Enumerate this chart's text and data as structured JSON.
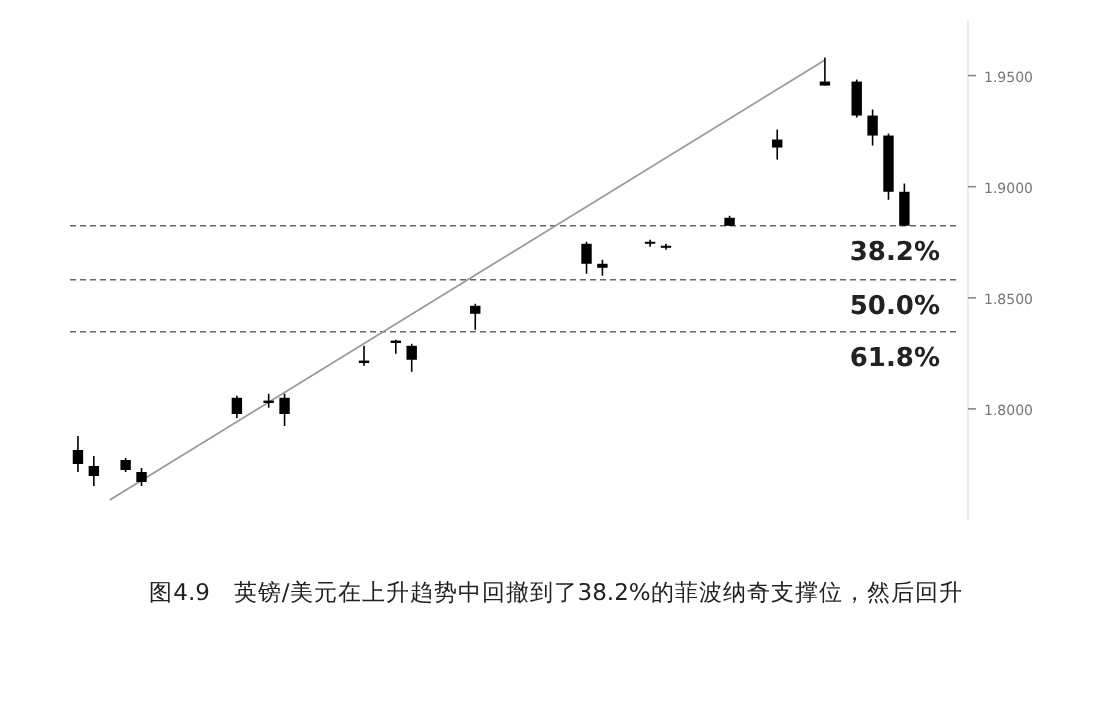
{
  "chart_data": {
    "type": "candlestick",
    "title": "图4.9　英镑/美元在上升趋势中回撤到了38.2%的菲波纳奇支撑位，然后回升",
    "categories": [
      null,
      null,
      null,
      null,
      null,
      null,
      null,
      null,
      null,
      null,
      null,
      null,
      null,
      null,
      null,
      null,
      null,
      null,
      null,
      null,
      null,
      null,
      null,
      null,
      null,
      null,
      null,
      null,
      null,
      null,
      null,
      null,
      null,
      null,
      null,
      null,
      null,
      null,
      null,
      null,
      null,
      null,
      null,
      null,
      null,
      null,
      null,
      null,
      null,
      null,
      null,
      null,
      null,
      null,
      null,
      null
    ],
    "ohlc": [
      [
        1.7815,
        1.7878,
        1.7716,
        1.7752
      ],
      [
        1.7743,
        1.7788,
        1.7653,
        1.7698
      ],
      null,
      [
        1.777,
        1.7779,
        1.7716,
        1.7725
      ],
      [
        1.7716,
        1.7734,
        1.7653,
        1.7671
      ],
      null,
      null,
      null,
      null,
      null,
      [
        1.805,
        1.8059,
        1.7959,
        1.7977
      ],
      null,
      [
        1.8032,
        1.8068,
        1.8005,
        1.8028
      ],
      [
        1.805,
        1.8068,
        1.7923,
        1.7977
      ],
      null,
      null,
      null,
      null,
      [
        1.8212,
        1.8284,
        1.8194,
        1.8208
      ],
      null,
      [
        1.8302,
        1.8311,
        1.8248,
        1.8298
      ],
      [
        1.8284,
        1.8293,
        1.8167,
        1.8221
      ],
      null,
      null,
      null,
      [
        1.8464,
        1.8473,
        1.8356,
        1.8428
      ],
      null,
      null,
      null,
      null,
      null,
      null,
      [
        1.8743,
        1.8752,
        1.8608,
        1.8653
      ],
      [
        1.8653,
        1.8671,
        1.8599,
        1.8635
      ],
      null,
      null,
      [
        1.8752,
        1.8761,
        1.873,
        1.8743
      ],
      [
        1.8734,
        1.8743,
        1.8716,
        1.8725
      ],
      null,
      null,
      null,
      [
        1.886,
        1.8869,
        1.8824,
        1.8824
      ],
      null,
      null,
      [
        1.9212,
        1.9257,
        1.9122,
        1.9176
      ],
      null,
      null,
      [
        1.9473,
        1.9581,
        1.9455,
        1.9455
      ],
      null,
      [
        1.9473,
        1.9482,
        1.9311,
        1.932
      ],
      [
        1.932,
        1.9347,
        1.9185,
        1.923
      ],
      [
        1.923,
        1.9239,
        1.8941,
        1.8977
      ],
      [
        1.8977,
        1.9014,
        1.8824,
        1.8824
      ],
      null,
      null,
      null
    ],
    "color": "#000000",
    "series": [
      {
        "type": "line",
        "color": "#999999",
        "values": [
          null,
          null,
          1.759,
          null,
          null,
          null,
          null,
          null,
          null,
          null,
          null,
          null,
          null,
          null,
          null,
          null,
          null,
          null,
          null,
          null,
          null,
          null,
          null,
          null,
          null,
          null,
          null,
          null,
          null,
          null,
          null,
          null,
          null,
          null,
          null,
          null,
          null,
          null,
          null,
          null,
          null,
          null,
          null,
          null,
          null,
          null,
          null,
          1.957,
          null,
          null,
          null,
          null,
          null,
          null,
          null,
          null
        ]
      }
    ],
    "ylim": [
      1.75,
      1.975
    ],
    "yticks": [
      {
        "value": 1.8,
        "label": "1.8000"
      },
      {
        "value": 1.85,
        "label": "1.8500"
      },
      {
        "value": 1.9,
        "label": "1.9000"
      },
      {
        "value": 1.95,
        "label": "1.9500"
      }
    ],
    "ref_lines": [
      {
        "axis": "y",
        "value": 1.8824,
        "color": "#666666",
        "line_style": "dashed"
      },
      {
        "axis": "y",
        "value": 1.8581,
        "color": "#666666",
        "line_style": "dashed"
      },
      {
        "axis": "y",
        "value": 1.8347,
        "color": "#666666",
        "line_style": "dashed"
      }
    ],
    "annotations": [
      {
        "text": "38.2%",
        "y": 1.8824
      },
      {
        "text": "50.0%",
        "y": 1.8581
      },
      {
        "text": "61.8%",
        "y": 1.8347
      }
    ]
  }
}
